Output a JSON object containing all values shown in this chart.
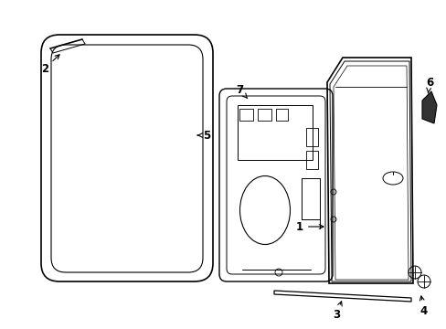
{
  "background_color": "#ffffff",
  "line_color": "#000000",
  "label_color": "#000000",
  "figsize": [
    4.89,
    3.6
  ],
  "dpi": 100,
  "lw_main": 1.0,
  "lw_thin": 0.6,
  "label_fs": 8.5
}
